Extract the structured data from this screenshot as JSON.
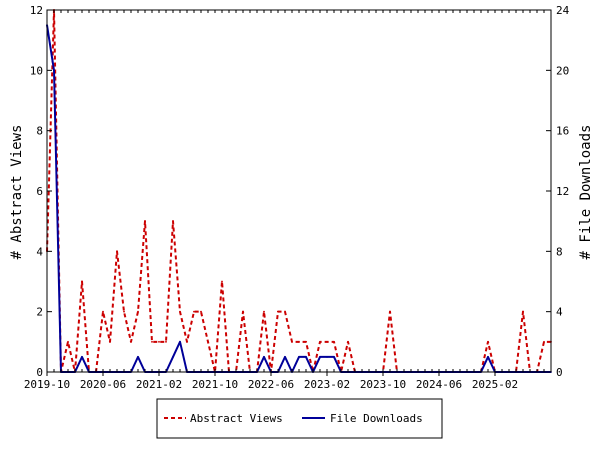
{
  "chart_data": {
    "type": "line",
    "x_tick_labels": [
      "2019-10",
      "2020-06",
      "2021-02",
      "2021-10",
      "2022-06",
      "2023-02",
      "2023-10",
      "2024-06",
      "2025-02"
    ],
    "y_left": {
      "label": "# Abstract Views",
      "ticks": [
        0,
        2,
        4,
        6,
        8,
        10,
        12
      ],
      "range": [
        0,
        12
      ]
    },
    "y_right": {
      "label": "# File Downloads",
      "ticks": [
        0,
        4,
        8,
        12,
        16,
        20,
        24
      ],
      "range": [
        0,
        24
      ]
    },
    "grid": false,
    "legend": {
      "position": "bottom"
    },
    "series": [
      {
        "name": "Abstract Views",
        "axis": "left",
        "color": "#cc0000",
        "style": "dashed",
        "values": [
          4,
          12,
          0,
          1,
          0,
          3,
          0,
          0,
          2,
          1,
          4,
          2,
          1,
          2,
          5,
          1,
          1,
          1,
          5,
          2,
          1,
          2,
          2,
          1,
          0,
          3,
          0,
          0,
          2,
          0,
          0,
          2,
          0,
          2,
          2,
          1,
          1,
          1,
          0,
          1,
          1,
          1,
          0,
          1,
          0,
          0,
          0,
          0,
          0,
          2,
          0,
          0,
          0,
          0,
          0,
          0,
          0,
          0,
          0,
          0,
          0,
          0,
          0,
          1,
          0,
          0,
          0,
          0,
          2,
          0,
          0,
          1,
          1
        ]
      },
      {
        "name": "File Downloads",
        "axis": "right",
        "color": "#000099",
        "style": "solid",
        "values": [
          23,
          20,
          0,
          0,
          0,
          1,
          0,
          0,
          0,
          0,
          0,
          0,
          0,
          1,
          0,
          0,
          0,
          0,
          1,
          2,
          0,
          0,
          0,
          0,
          0,
          0,
          0,
          0,
          0,
          0,
          0,
          1,
          0,
          0,
          1,
          0,
          1,
          1,
          0,
          1,
          1,
          1,
          0,
          0,
          0,
          0,
          0,
          0,
          0,
          0,
          0,
          0,
          0,
          0,
          0,
          0,
          0,
          0,
          0,
          0,
          0,
          0,
          0,
          1,
          0,
          0,
          0,
          0,
          0,
          0,
          0,
          0,
          0
        ]
      }
    ]
  }
}
